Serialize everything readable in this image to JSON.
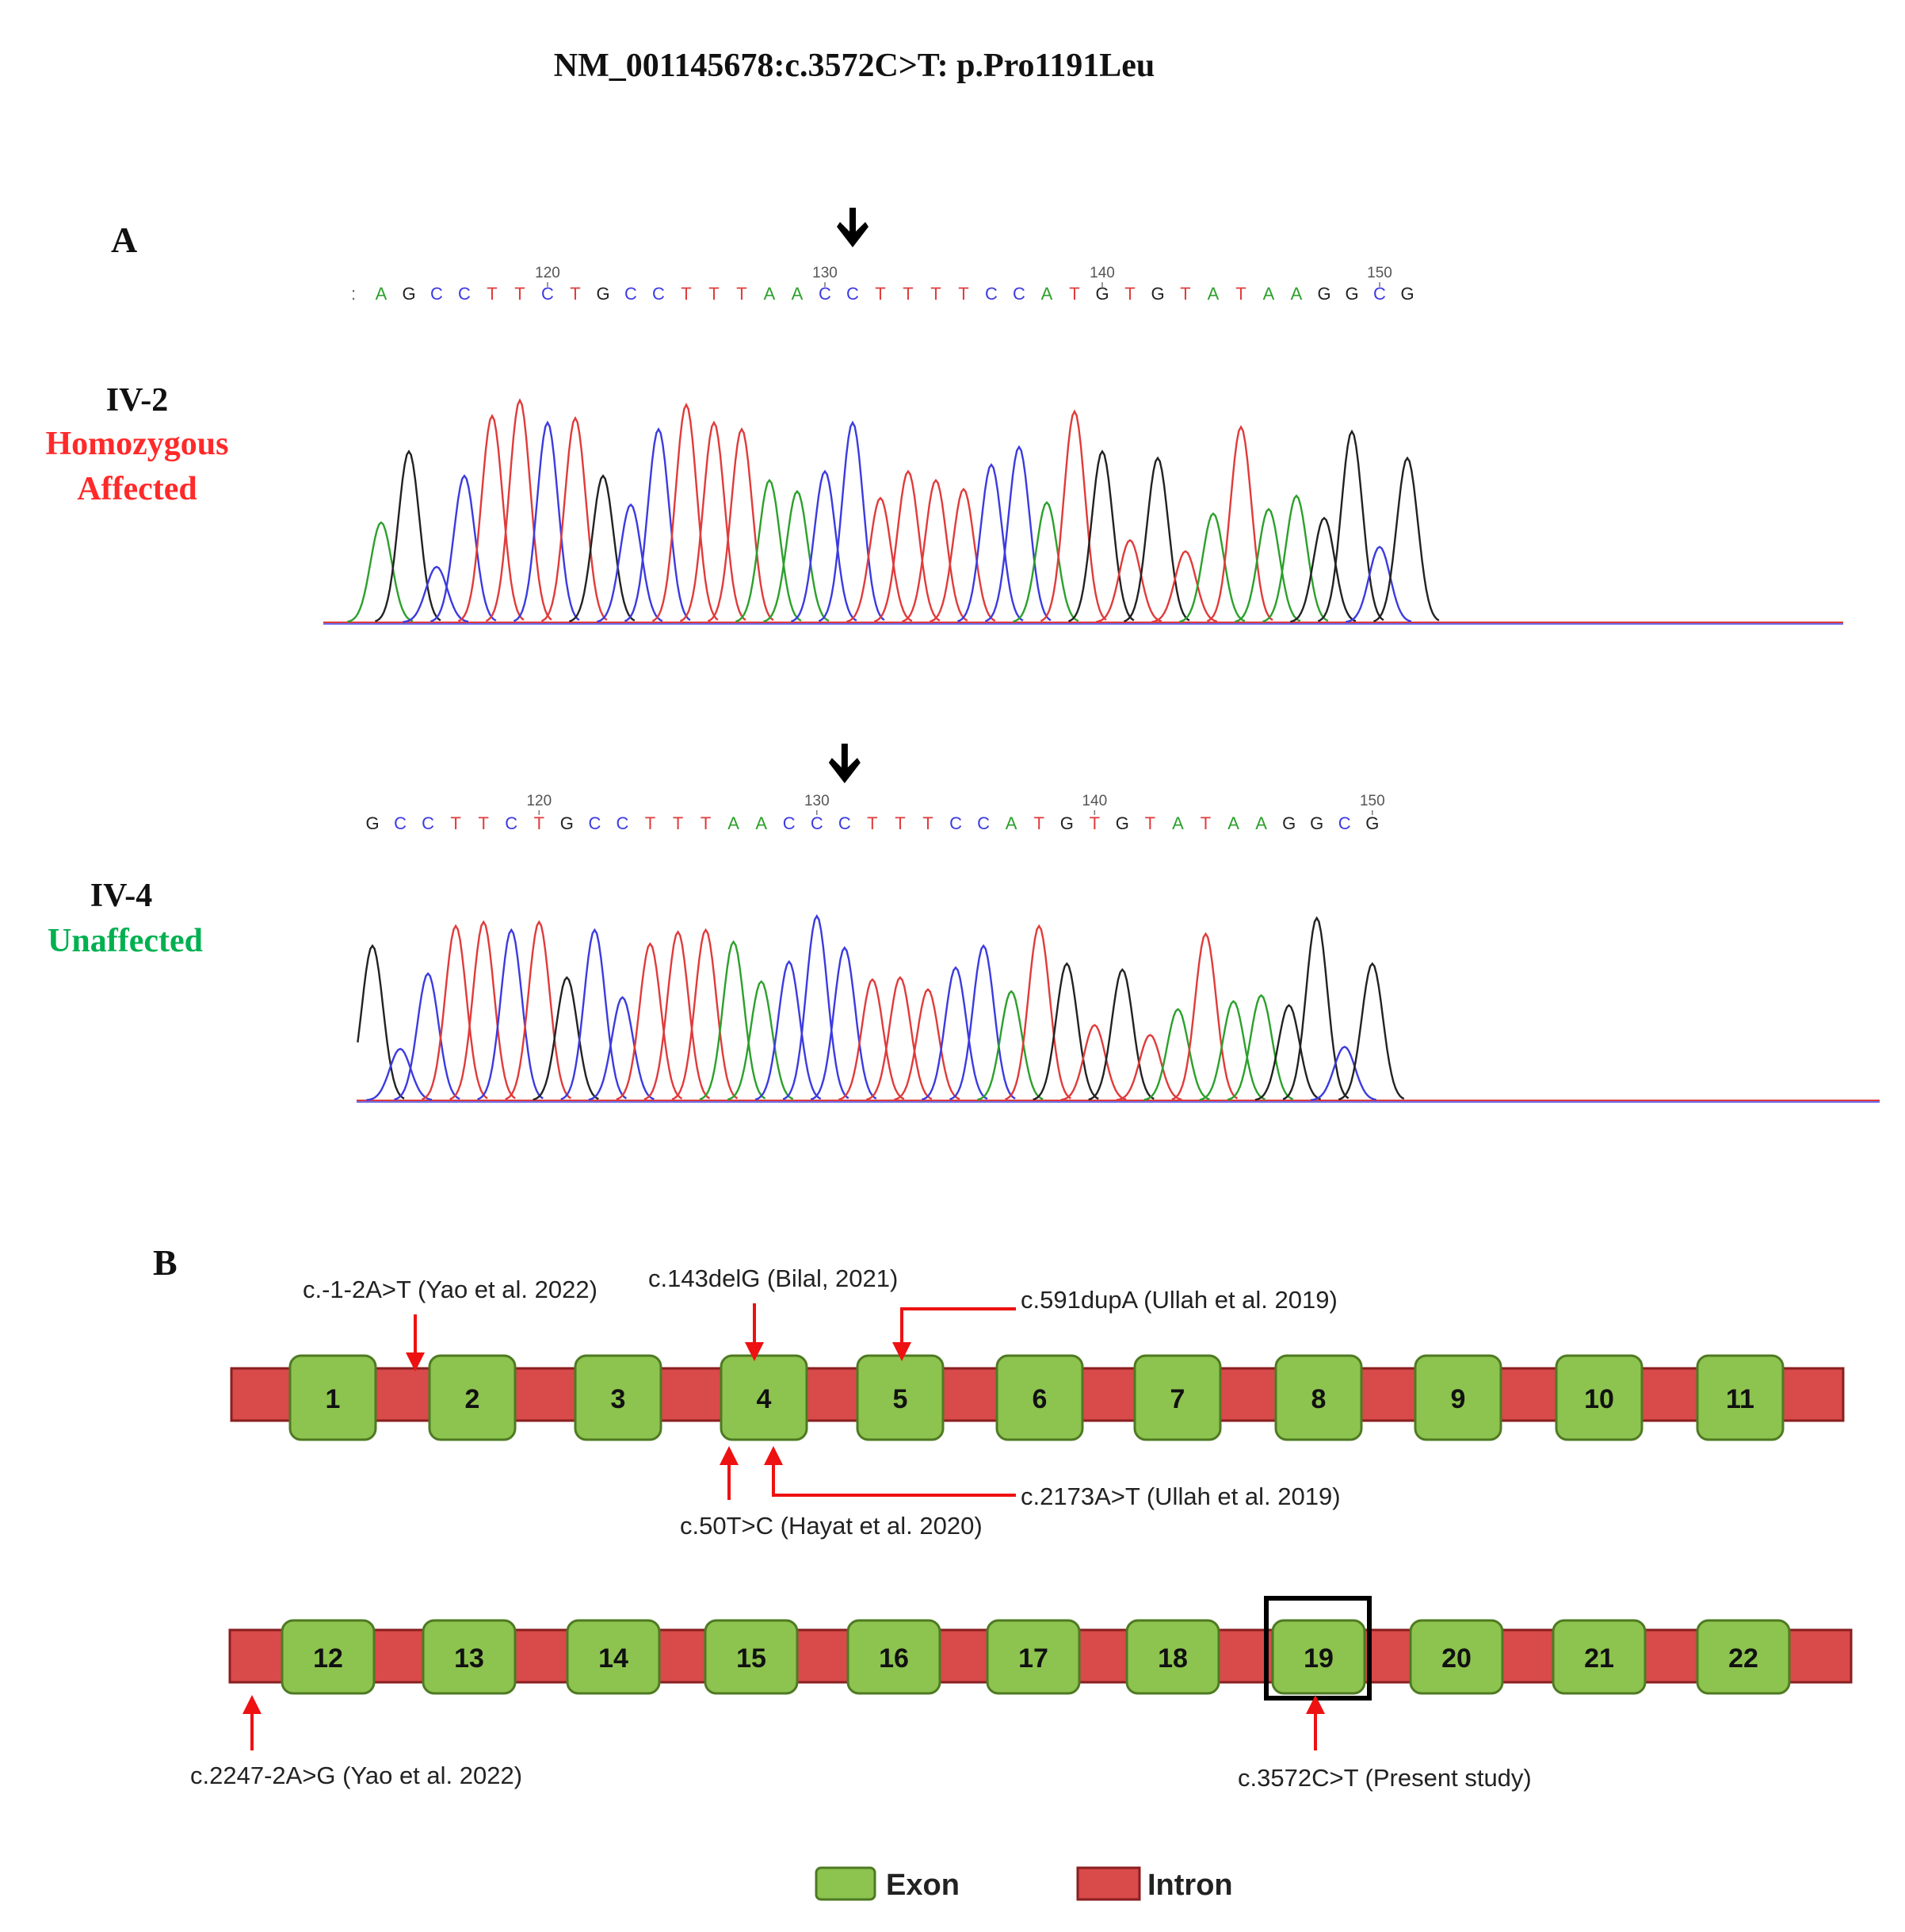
{
  "title": "NM_001145678:c.3572C>T: p.Pro1191Leu",
  "panel_a": {
    "label": "A",
    "colors": {
      "A": "#2ca02c",
      "C": "#3b3be0",
      "G": "#222222",
      "T": "#e03b3b"
    },
    "traces": [
      {
        "sample": "IV-2",
        "status": "Homozygous\nAffected",
        "status_color": "#ff2a2a",
        "sequence": ":AGCCTTCTGCCTTTAACCTTTTCCATGTGTATAAGGCG",
        "tick_labels": [
          {
            "label": "120",
            "index": 7
          },
          {
            "label": "130",
            "index": 17
          },
          {
            "label": "140",
            "index": 27
          },
          {
            "label": "150",
            "index": 37
          }
        ],
        "arrow_index": 18,
        "peak_heights": [
          0,
          0.45,
          0.77,
          0.25,
          0.66,
          0.93,
          1.0,
          0.9,
          0.92,
          0.66,
          0.53,
          0.87,
          0.98,
          0.9,
          0.87,
          0.64,
          0.59,
          0.68,
          0.9,
          0.56,
          0.68,
          0.64,
          0.6,
          0.71,
          0.79,
          0.54,
          0.95,
          0.77,
          0.37,
          0.74,
          0.32,
          0.49,
          0.88,
          0.51,
          0.57,
          0.47,
          0.86,
          0.34,
          0.74
        ]
      },
      {
        "sample": "IV-4",
        "status": "Unaffected",
        "status_color": "#00b050",
        "sequence": "GCCTTCTGCCTTTAACCCTTTCCATGTGTATAAGGCG",
        "tick_labels": [
          {
            "label": "120",
            "index": 6
          },
          {
            "label": "130",
            "index": 16
          },
          {
            "label": "140",
            "index": 26
          },
          {
            "label": "150",
            "index": 36
          }
        ],
        "arrow_index": 17,
        "peak_heights": [
          0.78,
          0.26,
          0.64,
          0.88,
          0.9,
          0.86,
          0.9,
          0.62,
          0.86,
          0.52,
          0.79,
          0.85,
          0.86,
          0.8,
          0.6,
          0.7,
          0.93,
          0.77,
          0.61,
          0.62,
          0.56,
          0.67,
          0.78,
          0.55,
          0.88,
          0.69,
          0.38,
          0.66,
          0.33,
          0.46,
          0.84,
          0.5,
          0.53,
          0.48,
          0.92,
          0.27,
          0.69
        ]
      }
    ]
  },
  "panel_b": {
    "label": "B",
    "exon_color": "#8dc34f",
    "intron_color": "#d94a4a",
    "rows": [
      {
        "exons": [
          "1",
          "2",
          "3",
          "4",
          "5",
          "6",
          "7",
          "8",
          "9",
          "10",
          "11"
        ]
      },
      {
        "exons": [
          "12",
          "13",
          "14",
          "15",
          "16",
          "17",
          "18",
          "19",
          "20",
          "21",
          "22"
        ]
      }
    ],
    "variants": [
      {
        "label": "c.-1-2A>T (Yao et al. 2022)"
      },
      {
        "label": "c.143delG (Bilal, 2021)"
      },
      {
        "label": "c.591dupA  (Ullah et al. 2019)"
      },
      {
        "label": "c.2173A>T  (Ullah et al. 2019)"
      },
      {
        "label": "c.50T>C  (Hayat et al. 2020)"
      },
      {
        "label": "c.2247-2A>G  (Yao et al. 2022)"
      },
      {
        "label": "c.3572C>T  (Present study)"
      }
    ],
    "highlight_exon": "19",
    "legend": [
      {
        "label": "Exon",
        "color": "#8dc34f"
      },
      {
        "label": "Intron",
        "color": "#d94a4a"
      }
    ]
  }
}
